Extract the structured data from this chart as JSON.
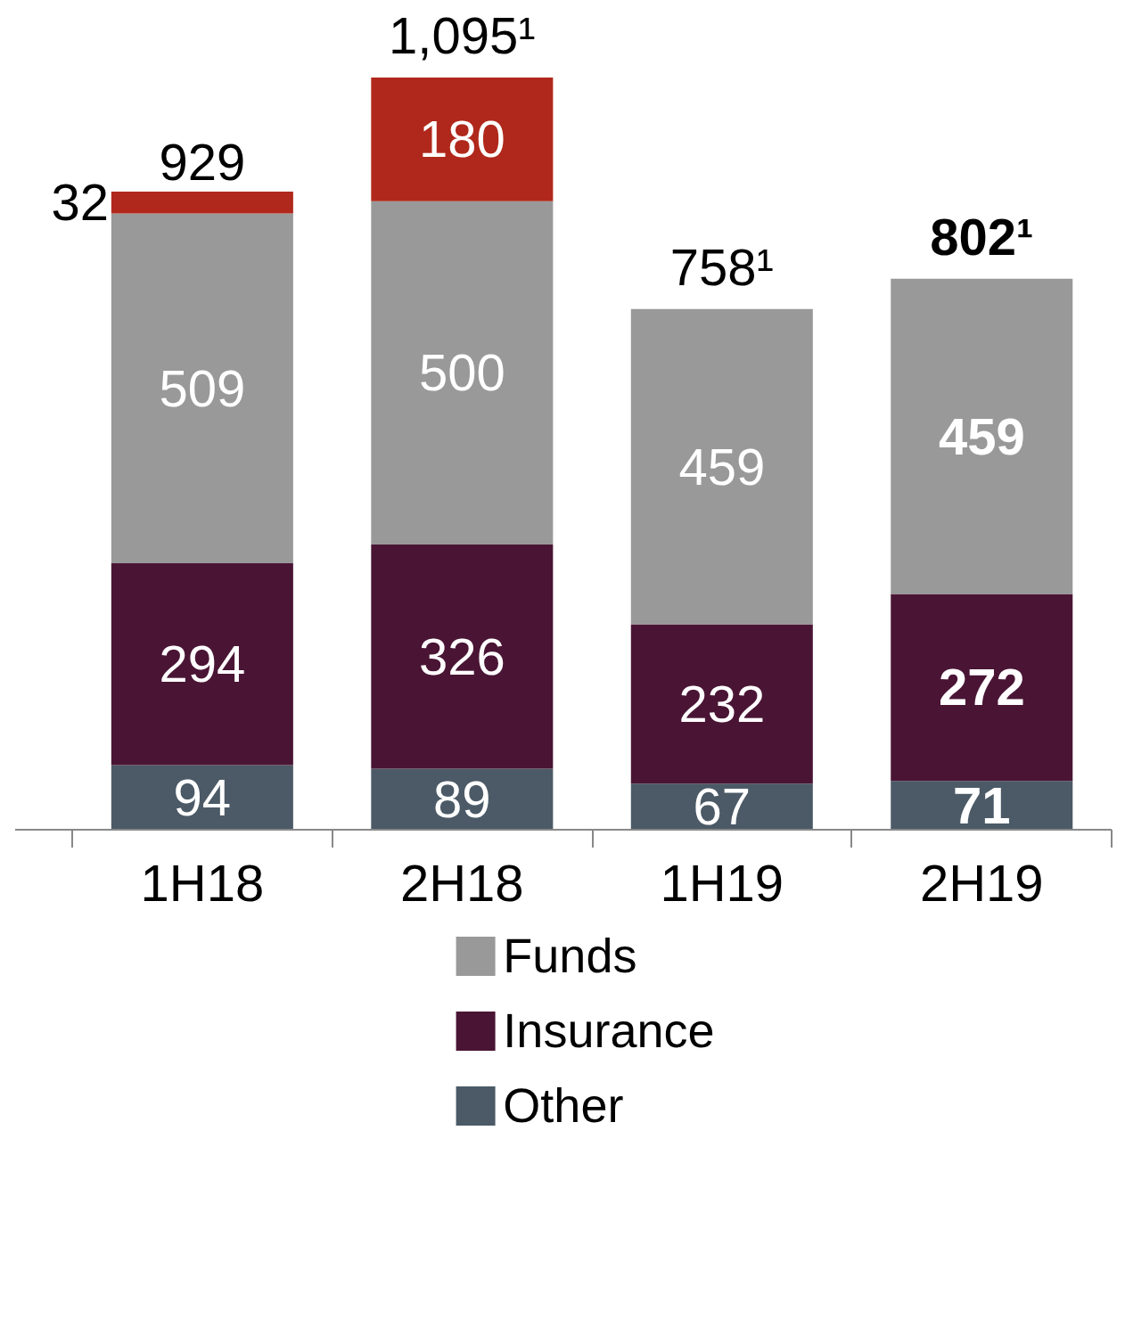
{
  "chart_data": {
    "type": "bar",
    "stacked": true,
    "categories": [
      "1H18",
      "2H18",
      "1H19",
      "2H19"
    ],
    "series": [
      {
        "name": "Other",
        "color": "#4b5a66",
        "values": [
          94,
          89,
          67,
          71
        ]
      },
      {
        "name": "Insurance",
        "color": "#4a1535",
        "values": [
          294,
          326,
          232,
          272
        ]
      },
      {
        "name": "Funds",
        "color": "#999999",
        "values": [
          509,
          500,
          459,
          459
        ]
      },
      {
        "color": "#b0281b",
        "values": [
          32,
          180,
          null,
          null
        ]
      }
    ],
    "data_labels": true,
    "totals": [
      "929",
      "1,095¹",
      "758¹",
      "802¹"
    ],
    "grid": false,
    "legend": "bottom"
  }
}
